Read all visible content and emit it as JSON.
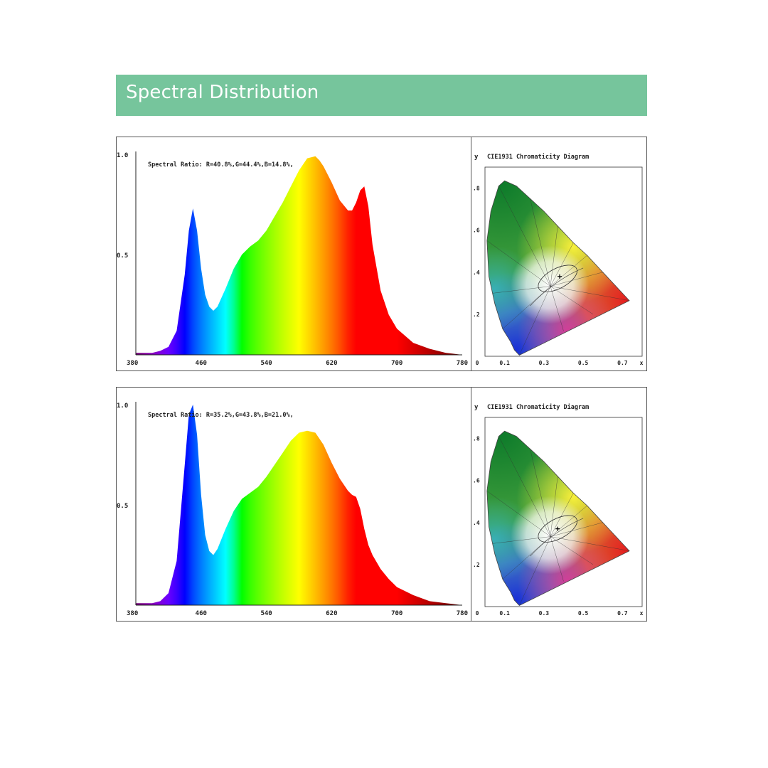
{
  "header": {
    "title": "Spectral Distribution",
    "color": "#76c59c"
  },
  "chart_data": [
    {
      "type": "area",
      "title": "Spectral Ratio:  R=40.8%,G=44.4%,B=14.8%,",
      "x_ticks": [
        "380",
        "460",
        "540",
        "620",
        "700",
        "780"
      ],
      "y_ticks": [
        "1.0",
        "0.5"
      ],
      "xlim": [
        380,
        780
      ],
      "ylim": [
        0,
        1.0
      ],
      "series": [
        {
          "x": [
            380,
            400,
            410,
            420,
            430,
            440,
            445,
            450,
            455,
            460,
            465,
            470,
            475,
            480,
            490,
            500,
            510,
            520,
            530,
            540,
            550,
            560,
            570,
            580,
            590,
            600,
            605,
            610,
            620,
            630,
            640,
            645,
            650,
            655,
            660,
            665,
            670,
            680,
            690,
            700,
            720,
            740,
            760,
            780
          ],
          "y": [
            0.01,
            0.01,
            0.02,
            0.04,
            0.12,
            0.4,
            0.62,
            0.73,
            0.62,
            0.43,
            0.3,
            0.24,
            0.22,
            0.24,
            0.33,
            0.43,
            0.5,
            0.54,
            0.57,
            0.62,
            0.69,
            0.76,
            0.84,
            0.92,
            0.98,
            0.99,
            0.97,
            0.94,
            0.86,
            0.77,
            0.72,
            0.72,
            0.76,
            0.82,
            0.84,
            0.74,
            0.55,
            0.32,
            0.2,
            0.13,
            0.06,
            0.03,
            0.01,
            0.0
          ]
        }
      ]
    },
    {
      "type": "scatter",
      "title": "CIE1931 Chromaticity Diagram",
      "ylabel": "y",
      "xlabel": "x",
      "x_ticks": [
        "0",
        "0.1",
        "0.3",
        "0.5",
        "0.7"
      ],
      "y_ticks": [
        ".8",
        ".6",
        ".4",
        ".2"
      ],
      "xlim": [
        0,
        0.8
      ],
      "ylim": [
        0,
        0.9
      ],
      "point": {
        "x": 0.38,
        "y": 0.38
      }
    },
    {
      "type": "area",
      "title": "Spectral Ratio:  R=35.2%,G=43.8%,B=21.0%,",
      "x_ticks": [
        "380",
        "460",
        "540",
        "620",
        "700",
        "780"
      ],
      "y_ticks": [
        "1.0",
        "0.5"
      ],
      "xlim": [
        380,
        780
      ],
      "ylim": [
        0,
        1.0
      ],
      "series": [
        {
          "x": [
            380,
            400,
            410,
            420,
            430,
            440,
            445,
            450,
            455,
            460,
            465,
            470,
            475,
            480,
            490,
            500,
            510,
            520,
            530,
            540,
            550,
            560,
            570,
            580,
            590,
            600,
            610,
            620,
            630,
            640,
            645,
            650,
            655,
            660,
            665,
            670,
            680,
            690,
            700,
            720,
            740,
            760,
            780
          ],
          "y": [
            0.01,
            0.01,
            0.02,
            0.06,
            0.22,
            0.7,
            0.95,
            1.0,
            0.85,
            0.55,
            0.35,
            0.27,
            0.25,
            0.28,
            0.38,
            0.47,
            0.53,
            0.56,
            0.59,
            0.64,
            0.7,
            0.76,
            0.82,
            0.86,
            0.87,
            0.86,
            0.8,
            0.71,
            0.63,
            0.57,
            0.55,
            0.54,
            0.48,
            0.38,
            0.3,
            0.25,
            0.18,
            0.13,
            0.09,
            0.05,
            0.02,
            0.01,
            0.0
          ]
        }
      ]
    },
    {
      "type": "scatter",
      "title": "CIE1931 Chromaticity Diagram",
      "ylabel": "y",
      "xlabel": "x",
      "x_ticks": [
        "0",
        "0.1",
        "0.3",
        "0.5",
        "0.7"
      ],
      "y_ticks": [
        ".8",
        ".6",
        ".4",
        ".2"
      ],
      "xlim": [
        0,
        0.8
      ],
      "ylim": [
        0,
        0.9
      ],
      "point": {
        "x": 0.37,
        "y": 0.37
      }
    }
  ]
}
